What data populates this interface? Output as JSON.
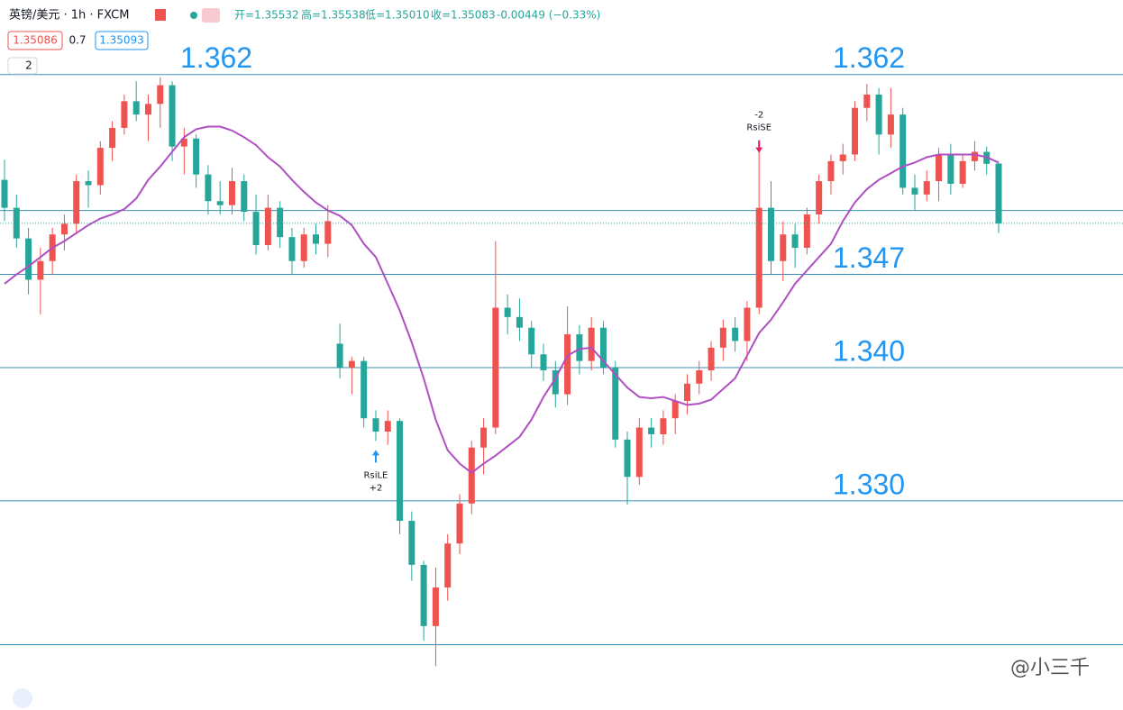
{
  "chart_data": {
    "type": "candlestick",
    "symbol": "英镑/美元 · 1h · FXCM",
    "stats": [
      "开=1.35532",
      "高=1.35538",
      "低=1.35010",
      "收=1.35083",
      "-0.00449 (−0.33%)"
    ],
    "sell": "1.35086",
    "spread": "0.7",
    "buy": "1.35093",
    "indicators": "2",
    "watermark": "@小三千",
    "up_color": "#ef5350",
    "down_color": "#26a69a",
    "ma_color": "#b04fc2",
    "level_color": "#3d8fb8",
    "label_color": "#2196f3",
    "ylim": [
      1.3143,
      1.3676
    ],
    "levels": [
      {
        "value": 1.362,
        "label": "1.362"
      },
      1.3518,
      {
        "value": 1.347,
        "label": "1.347"
      },
      {
        "value": 1.34,
        "label": "1.340"
      },
      {
        "value": 1.33,
        "label": "1.330"
      },
      1.3192
    ],
    "open": [
      1.3541,
      1.352,
      1.3497,
      1.3466,
      1.348,
      1.35,
      1.3508,
      1.354,
      1.3537,
      1.3565,
      1.358,
      1.36,
      1.359,
      1.3598,
      1.3612,
      1.3566,
      1.3572,
      1.3545,
      1.3525,
      1.3522,
      1.354,
      1.3517,
      1.3492,
      1.352,
      1.3498,
      1.348,
      1.35,
      1.3493,
      1.3418,
      1.34,
      1.3405,
      1.3362,
      1.3352,
      1.336,
      1.3285,
      1.3252,
      1.3206,
      1.3235,
      1.3268,
      1.3298,
      1.334,
      1.3355,
      1.3445,
      1.3438,
      1.343,
      1.341,
      1.3398,
      1.338,
      1.3425,
      1.3405,
      1.343,
      1.34,
      1.3346,
      1.3318,
      1.3355,
      1.335,
      1.3362,
      1.3375,
      1.3388,
      1.3398,
      1.3415,
      1.343,
      1.342,
      1.3445,
      1.352,
      1.348,
      1.35,
      1.349,
      1.3515,
      1.354,
      1.3555,
      1.356,
      1.3595,
      1.3605,
      1.3575,
      1.359,
      1.3535,
      1.353,
      1.354,
      1.356,
      1.3538,
      1.3555,
      1.3562,
      1.35532
    ],
    "high": [
      1.3556,
      1.353,
      1.3505,
      1.349,
      1.3505,
      1.3515,
      1.3545,
      1.3548,
      1.357,
      1.3585,
      1.3605,
      1.3615,
      1.3605,
      1.3618,
      1.3615,
      1.358,
      1.3575,
      1.3552,
      1.354,
      1.355,
      1.3545,
      1.353,
      1.353,
      1.3525,
      1.3505,
      1.3505,
      1.3508,
      1.3522,
      1.3433,
      1.3408,
      1.3408,
      1.3368,
      1.3368,
      1.3362,
      1.3292,
      1.3255,
      1.325,
      1.3275,
      1.3305,
      1.3345,
      1.3362,
      1.3495,
      1.3455,
      1.3452,
      1.3435,
      1.3418,
      1.3405,
      1.3446,
      1.3432,
      1.3438,
      1.3435,
      1.3405,
      1.3352,
      1.3362,
      1.3362,
      1.3368,
      1.338,
      1.3395,
      1.3405,
      1.342,
      1.3436,
      1.3438,
      1.345,
      1.3568,
      1.354,
      1.351,
      1.3508,
      1.352,
      1.3545,
      1.356,
      1.3568,
      1.36,
      1.3613,
      1.361,
      1.361,
      1.3595,
      1.3545,
      1.3548,
      1.3565,
      1.3568,
      1.356,
      1.357,
      1.3566,
      1.35538
    ],
    "low": [
      1.351,
      1.349,
      1.3455,
      1.344,
      1.347,
      1.3488,
      1.35,
      1.352,
      1.353,
      1.3555,
      1.3575,
      1.3585,
      1.357,
      1.358,
      1.3555,
      1.3545,
      1.3535,
      1.3515,
      1.3515,
      1.3515,
      1.351,
      1.3485,
      1.3488,
      1.349,
      1.347,
      1.3475,
      1.3485,
      1.3483,
      1.3392,
      1.338,
      1.3355,
      1.3345,
      1.3342,
      1.3275,
      1.324,
      1.3195,
      1.3176,
      1.3225,
      1.326,
      1.329,
      1.332,
      1.335,
      1.3425,
      1.342,
      1.34,
      1.339,
      1.337,
      1.3372,
      1.3395,
      1.3398,
      1.3395,
      1.334,
      1.3297,
      1.3312,
      1.334,
      1.3342,
      1.335,
      1.3365,
      1.338,
      1.339,
      1.3405,
      1.3412,
      1.3405,
      1.344,
      1.347,
      1.3465,
      1.3475,
      1.3485,
      1.3508,
      1.353,
      1.3545,
      1.3555,
      1.3585,
      1.356,
      1.3565,
      1.353,
      1.3518,
      1.3525,
      1.3525,
      1.353,
      1.3535,
      1.3548,
      1.3545,
      1.3501
    ],
    "close": [
      1.352,
      1.3497,
      1.3466,
      1.348,
      1.35,
      1.3508,
      1.354,
      1.3537,
      1.3565,
      1.358,
      1.36,
      1.359,
      1.3598,
      1.3612,
      1.3566,
      1.3572,
      1.3545,
      1.3525,
      1.3522,
      1.354,
      1.3517,
      1.3492,
      1.352,
      1.3498,
      1.348,
      1.35,
      1.3493,
      1.351,
      1.34,
      1.3405,
      1.3362,
      1.3352,
      1.336,
      1.3285,
      1.3252,
      1.3206,
      1.3235,
      1.3268,
      1.3298,
      1.334,
      1.3355,
      1.3445,
      1.3438,
      1.343,
      1.341,
      1.3398,
      1.338,
      1.3425,
      1.3405,
      1.343,
      1.34,
      1.3346,
      1.3318,
      1.3355,
      1.335,
      1.3362,
      1.3375,
      1.3388,
      1.3398,
      1.3415,
      1.343,
      1.342,
      1.3445,
      1.352,
      1.348,
      1.35,
      1.349,
      1.3515,
      1.354,
      1.3555,
      1.356,
      1.3595,
      1.3605,
      1.3575,
      1.359,
      1.3535,
      1.353,
      1.354,
      1.356,
      1.3538,
      1.3555,
      1.3562,
      1.3553,
      1.35083
    ],
    "ma": [
      1.3463,
      1.347,
      1.3476,
      1.3483,
      1.349,
      1.3495,
      1.3501,
      1.3507,
      1.3512,
      1.3515,
      1.3519,
      1.3527,
      1.3541,
      1.3551,
      1.3562,
      1.3573,
      1.3579,
      1.3581,
      1.3581,
      1.3578,
      1.3573,
      1.3567,
      1.3558,
      1.3551,
      1.3541,
      1.3532,
      1.3524,
      1.3518,
      1.3514,
      1.3507,
      1.3493,
      1.3483,
      1.3463,
      1.3443,
      1.3419,
      1.3392,
      1.3361,
      1.3338,
      1.3328,
      1.3321,
      1.3328,
      1.3334,
      1.3341,
      1.3348,
      1.3361,
      1.3378,
      1.3392,
      1.3409,
      1.3414,
      1.3415,
      1.3405,
      1.3395,
      1.3385,
      1.3378,
      1.3377,
      1.3378,
      1.3375,
      1.3372,
      1.3373,
      1.3376,
      1.3384,
      1.3392,
      1.3409,
      1.3426,
      1.3436,
      1.3449,
      1.3463,
      1.3473,
      1.3483,
      1.3493,
      1.351,
      1.3524,
      1.3534,
      1.3541,
      1.3546,
      1.3551,
      1.3554,
      1.3558,
      1.356,
      1.356,
      1.356,
      1.356,
      1.3558,
      1.3554
    ],
    "signals": [
      {
        "name": "RsiLE",
        "quantity": "+2",
        "candle": 31,
        "side": "long"
      },
      {
        "name": "RsiSE",
        "quantity": "-2",
        "candle": 63,
        "side": "short"
      }
    ]
  }
}
